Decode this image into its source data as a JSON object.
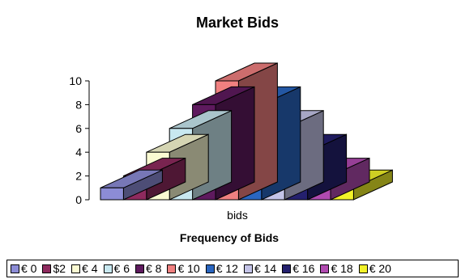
{
  "chart_data": {
    "type": "bar",
    "title": "Market Bids",
    "xlabel": "Frequency of Bids",
    "categories": [
      "bids"
    ],
    "ylim": [
      0,
      10
    ],
    "yticks": [
      0,
      2,
      4,
      6,
      8,
      10
    ],
    "grid": false,
    "legend_position": "bottom",
    "series": [
      {
        "name": "€ 0",
        "values": [
          1
        ],
        "color": "#8c8cd6"
      },
      {
        "name": "$2",
        "values": [
          2
        ],
        "color": "#8e2a5e"
      },
      {
        "name": "€ 4",
        "values": [
          4
        ],
        "color": "#fafad2"
      },
      {
        "name": "€ 6",
        "values": [
          6
        ],
        "color": "#c8e8f0"
      },
      {
        "name": "€ 8",
        "values": [
          8
        ],
        "color": "#5e1a5e"
      },
      {
        "name": "€ 10",
        "values": [
          10
        ],
        "color": "#f08080"
      },
      {
        "name": "€ 12",
        "values": [
          8
        ],
        "color": "#2a66c0"
      },
      {
        "name": "€ 14",
        "values": [
          6
        ],
        "color": "#c4c4e8"
      },
      {
        "name": "€ 16",
        "values": [
          4
        ],
        "color": "#24206e"
      },
      {
        "name": "€ 18",
        "values": [
          2
        ],
        "color": "#b04ab0"
      },
      {
        "name": "€ 20",
        "values": [
          1
        ],
        "color": "#f2f229"
      }
    ]
  }
}
